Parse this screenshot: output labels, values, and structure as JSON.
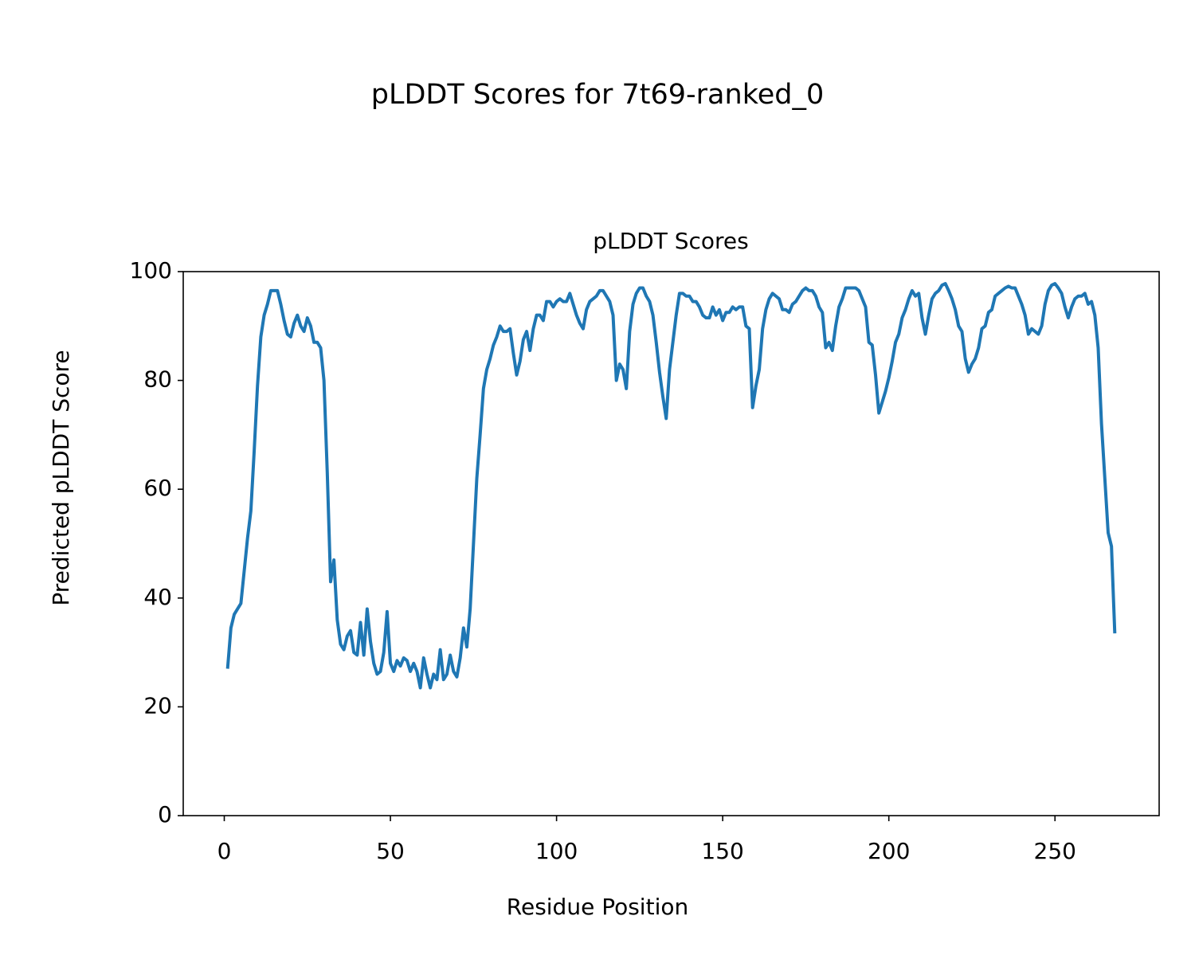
{
  "chart_data": {
    "type": "line",
    "title": "pLDDT Scores for 7t69-ranked_0",
    "subtitle": "pLDDT Scores",
    "x_label": "Residue Position",
    "y_label": "Predicted pLDDT Score",
    "x": [
      1,
      2,
      3,
      4,
      5,
      6,
      7,
      8,
      9,
      10,
      11,
      12,
      13,
      14,
      15,
      16,
      17,
      18,
      19,
      20,
      21,
      22,
      23,
      24,
      25,
      26,
      27,
      28,
      29,
      30,
      31,
      32,
      33,
      34,
      35,
      36,
      37,
      38,
      39,
      40,
      41,
      42,
      43,
      44,
      45,
      46,
      47,
      48,
      49,
      50,
      51,
      52,
      53,
      54,
      55,
      56,
      57,
      58,
      59,
      60,
      61,
      62,
      63,
      64,
      65,
      66,
      67,
      68,
      69,
      70,
      71,
      72,
      73,
      74,
      75,
      76,
      77,
      78,
      79,
      80,
      81,
      82,
      83,
      84,
      85,
      86,
      87,
      88,
      89,
      90,
      91,
      92,
      93,
      94,
      95,
      96,
      97,
      98,
      99,
      100,
      101,
      102,
      103,
      104,
      105,
      106,
      107,
      108,
      109,
      110,
      111,
      112,
      113,
      114,
      115,
      116,
      117,
      118,
      119,
      120,
      121,
      122,
      123,
      124,
      125,
      126,
      127,
      128,
      129,
      130,
      131,
      132,
      133,
      134,
      135,
      136,
      137,
      138,
      139,
      140,
      141,
      142,
      143,
      144,
      145,
      146,
      147,
      148,
      149,
      150,
      151,
      152,
      153,
      154,
      155,
      156,
      157,
      158,
      159,
      160,
      161,
      162,
      163,
      164,
      165,
      166,
      167,
      168,
      169,
      170,
      171,
      172,
      173,
      174,
      175,
      176,
      177,
      178,
      179,
      180,
      181,
      182,
      183,
      184,
      185,
      186,
      187,
      188,
      189,
      190,
      191,
      192,
      193,
      194,
      195,
      196,
      197,
      198,
      199,
      200,
      201,
      202,
      203,
      204,
      205,
      206,
      207,
      208,
      209,
      210,
      211,
      212,
      213,
      214,
      215,
      216,
      217,
      218,
      219,
      220,
      221,
      222,
      223,
      224,
      225,
      226,
      227,
      228,
      229,
      230,
      231,
      232,
      233,
      234,
      235,
      236,
      237,
      238,
      239,
      240,
      241,
      242,
      243,
      244,
      245,
      246,
      247,
      248,
      249,
      250,
      251,
      252,
      253,
      254,
      255,
      256,
      257,
      258,
      259,
      260,
      261,
      262,
      263,
      264,
      265,
      266,
      267,
      268
    ],
    "series": [
      {
        "name": "pLDDT",
        "color": "#1f77b4",
        "values": [
          27,
          34.5,
          37,
          38,
          39,
          45,
          51,
          56,
          67,
          79,
          88,
          92,
          94,
          96.5,
          96.5,
          96.5,
          94,
          91,
          88.5,
          88,
          90.5,
          92,
          90,
          89,
          91.5,
          90,
          87,
          87,
          86,
          80,
          63,
          43,
          47,
          36,
          31.5,
          30.5,
          33,
          34,
          30,
          29.5,
          35.5,
          29.5,
          38,
          32,
          28,
          26,
          26.5,
          30,
          37.5,
          28,
          26.5,
          28.5,
          27.5,
          29,
          28.5,
          26.5,
          28,
          26.5,
          23.5,
          29,
          26,
          23.5,
          26,
          25,
          30.5,
          25,
          26,
          29.5,
          26.5,
          25.5,
          29,
          34.5,
          31,
          38,
          50,
          62,
          70,
          78.5,
          82,
          84,
          86.5,
          88,
          90,
          89,
          89,
          89.5,
          85,
          81,
          83.5,
          87.5,
          89,
          85.5,
          89.5,
          92,
          92,
          91,
          94.5,
          94.5,
          93.5,
          94.5,
          95,
          94.5,
          94.5,
          96,
          94,
          92,
          90.5,
          89.5,
          93,
          94.5,
          95,
          95.5,
          96.5,
          96.5,
          95.5,
          94.5,
          92,
          80,
          83,
          82,
          78.5,
          89,
          94,
          96,
          97,
          97,
          95.5,
          94.5,
          92,
          87,
          81.5,
          77,
          73,
          82,
          87,
          92,
          96,
          96,
          95.5,
          95.5,
          94.5,
          94.5,
          93.5,
          92,
          91.5,
          91.5,
          93.5,
          92,
          93,
          91,
          92.5,
          92.5,
          93.5,
          93,
          93.5,
          93.5,
          90,
          89.5,
          75,
          79,
          82,
          89.5,
          93,
          95,
          96,
          95.5,
          95,
          93,
          93,
          92.5,
          94,
          94.5,
          95.5,
          96.5,
          97,
          96.5,
          96.5,
          95.5,
          93.5,
          92.5,
          86,
          87,
          85.5,
          90,
          93.5,
          95,
          97,
          97,
          97,
          97,
          96.5,
          95,
          93.5,
          87,
          86.5,
          81,
          74,
          76,
          78,
          80.5,
          83.5,
          87,
          88.5,
          91.5,
          93,
          95,
          96.5,
          95.5,
          96,
          91.5,
          88.5,
          92,
          95,
          96,
          96.5,
          97.5,
          97.8,
          96.5,
          95,
          93,
          90,
          89,
          84,
          81.5,
          83,
          84,
          86,
          89.5,
          90,
          92.5,
          93,
          95.5,
          96,
          96.5,
          97,
          97.3,
          97,
          97,
          95.5,
          94,
          92,
          88.5,
          89.5,
          89,
          88.5,
          90,
          94,
          96.5,
          97.5,
          97.8,
          97,
          96,
          93.5,
          91.5,
          93.5,
          95,
          95.5,
          95.5,
          96,
          94,
          94.5,
          92,
          86,
          72,
          62,
          52,
          49.5,
          33.5
        ]
      }
    ],
    "xlim": [
      -12.35,
      281.35
    ],
    "ylim": [
      0,
      100
    ],
    "xticks": [
      0,
      50,
      100,
      150,
      200,
      250
    ],
    "yticks": [
      0,
      20,
      40,
      60,
      80,
      100
    ],
    "grid": false
  }
}
